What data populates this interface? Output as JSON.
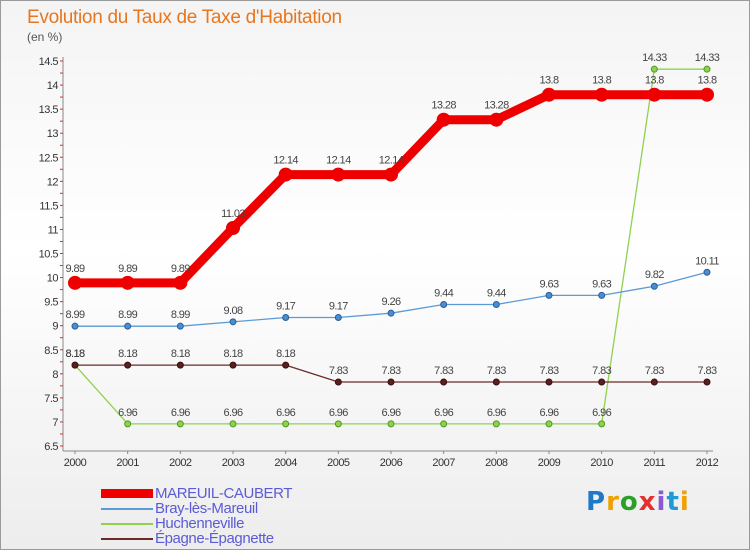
{
  "title": "Evolution du Taux de Taxe d'Habitation",
  "unit_label": "(en %)",
  "brand": {
    "letters": [
      "P",
      "r",
      "o",
      "x",
      "i",
      "t",
      "i"
    ],
    "colors": [
      "#1f78c8",
      "#f0a000",
      "#2aa02a",
      "#e53030",
      "#8a5ad6",
      "#1f9ad6",
      "#f0a000"
    ]
  },
  "chart_data": {
    "type": "line",
    "title": "Evolution du Taux de Taxe d'Habitation",
    "ylabel": "(en %)",
    "xlabel": "",
    "x": [
      "2000",
      "2001",
      "2002",
      "2003",
      "2004",
      "2005",
      "2006",
      "2007",
      "2008",
      "2009",
      "2010",
      "2011",
      "2012"
    ],
    "ylim": [
      6.5,
      14.5
    ],
    "yticks": [
      "6.5",
      "7",
      "7.5",
      "8",
      "8.5",
      "9",
      "9.5",
      "10",
      "10.5",
      "11",
      "11.5",
      "12",
      "12.5",
      "13",
      "13.5",
      "14",
      "14.5"
    ],
    "grid": false,
    "legend_position": "bottom-left",
    "series": [
      {
        "name": "MAREUIL-CAUBERT",
        "color": "#ee0000",
        "values": [
          9.89,
          9.89,
          9.89,
          11.03,
          12.14,
          12.14,
          12.14,
          13.28,
          13.28,
          13.8,
          13.8,
          13.8,
          13.8
        ],
        "labels": [
          "9.89",
          "9.89",
          "9.89",
          "11.03",
          "12.14",
          "12.14",
          "12.14",
          "13.28",
          "13.28",
          "13.8",
          "13.8",
          "13.8",
          "13.8"
        ]
      },
      {
        "name": "Bray-lès-Mareuil",
        "color": "#5b9bd5",
        "values": [
          8.99,
          8.99,
          8.99,
          9.08,
          9.17,
          9.17,
          9.26,
          9.44,
          9.44,
          9.63,
          9.63,
          9.82,
          10.11
        ],
        "labels": [
          "8.99",
          "8.99",
          "8.99",
          "9.08",
          "9.17",
          "9.17",
          "9.26",
          "9.44",
          "9.44",
          "9.63",
          "9.63",
          "9.82",
          "10.11"
        ]
      },
      {
        "name": "Huchenneville",
        "color": "#8fd14f",
        "values": [
          8.18,
          6.96,
          6.96,
          6.96,
          6.96,
          6.96,
          6.96,
          6.96,
          6.96,
          6.96,
          6.96,
          14.33,
          14.33
        ],
        "labels": [
          "8.18",
          "6.96",
          "6.96",
          "6.96",
          "6.96",
          "6.96",
          "6.96",
          "6.96",
          "6.96",
          "6.96",
          "6.96",
          "14.33",
          "14.33"
        ]
      },
      {
        "name": "Épagne-Épagnette",
        "color": "#6b2a2a",
        "values": [
          8.18,
          8.18,
          8.18,
          8.18,
          8.18,
          7.83,
          7.83,
          7.83,
          7.83,
          7.83,
          7.83,
          7.83,
          7.83
        ],
        "labels": [
          "8.18",
          "8.18",
          "8.18",
          "8.18",
          "8.18",
          "7.83",
          "7.83",
          "7.83",
          "7.83",
          "7.83",
          "7.83",
          "7.83",
          "7.83"
        ]
      }
    ]
  }
}
